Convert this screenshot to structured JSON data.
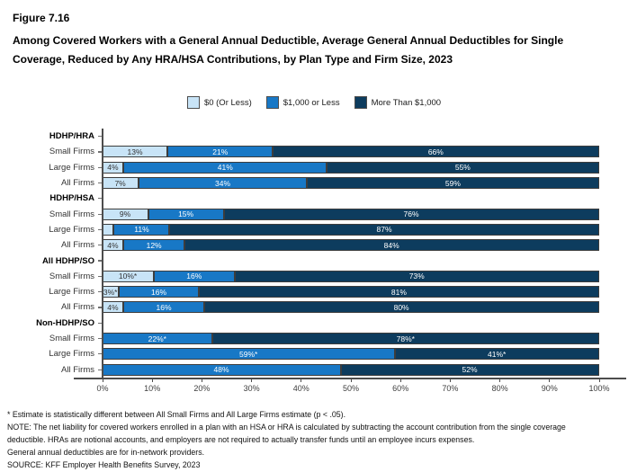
{
  "header": {
    "figure_label": "Figure 7.16",
    "title": "Among Covered Workers with a General Annual Deductible, Average General Annual Deductibles for Single Coverage, Reduced by Any HRA/HSA Contributions, by Plan Type and Firm Size, 2023"
  },
  "colors": {
    "light": "#C8E4F7",
    "medium": "#1878C6",
    "dark": "#0D3C5E",
    "axis": "#4d4d4d",
    "segment_border": "#3d3d3d",
    "text_on_light": "#333333",
    "text_on_dark": "#ffffff"
  },
  "legend": [
    {
      "label": "$0 (Or Less)"
    },
    {
      "label": "$1,000 or Less"
    },
    {
      "label": "More Than $1,000"
    }
  ],
  "chart_data": {
    "type": "bar",
    "orientation": "horizontal",
    "stacked": true,
    "title": "Figure 7.16 — Among Covered Workers with a General Annual Deductible, Average General Annual Deductibles for Single Coverage, Reduced by Any HRA/HSA Contributions, by Plan Type and Firm Size, 2023",
    "xlabel": "",
    "ylabel": "",
    "xlim": [
      0,
      100
    ],
    "grid": false,
    "legend_position": "top",
    "x_ticks": [
      "0%",
      "10%",
      "20%",
      "30%",
      "40%",
      "50%",
      "60%",
      "70%",
      "80%",
      "90%",
      "100%"
    ],
    "series_names": [
      "$0 (Or Less)",
      "$1,000 or Less",
      "More Than $1,000"
    ],
    "groups": [
      {
        "name": "HDHP/HRA",
        "rows": [
          {
            "label": "Small Firms",
            "values": [
              13,
              21,
              66
            ],
            "value_labels": [
              "13%",
              "21%",
              "66%"
            ]
          },
          {
            "label": "Large Firms",
            "values": [
              4,
              41,
              55
            ],
            "value_labels": [
              "4%",
              "41%",
              "55%"
            ]
          },
          {
            "label": "All Firms",
            "values": [
              7,
              34,
              59
            ],
            "value_labels": [
              "7%",
              "34%",
              "59%"
            ]
          }
        ]
      },
      {
        "name": "HDHP/HSA",
        "rows": [
          {
            "label": "Small Firms",
            "values": [
              9,
              15,
              76
            ],
            "value_labels": [
              "9%",
              "15%",
              "76%"
            ]
          },
          {
            "label": "Large Firms",
            "values": [
              2,
              11,
              87
            ],
            "value_labels": [
              "",
              "11%",
              "87%"
            ]
          },
          {
            "label": "All Firms",
            "values": [
              4,
              12,
              84
            ],
            "value_labels": [
              "4%",
              "12%",
              "84%"
            ]
          }
        ]
      },
      {
        "name": "All HDHP/SO",
        "rows": [
          {
            "label": "Small Firms",
            "values": [
              10,
              16,
              73
            ],
            "value_labels": [
              "10%*",
              "16%",
              "73%"
            ]
          },
          {
            "label": "Large Firms",
            "values": [
              3,
              16,
              81
            ],
            "value_labels": [
              "3%*",
              "16%",
              "81%"
            ]
          },
          {
            "label": "All Firms",
            "values": [
              4,
              16,
              80
            ],
            "value_labels": [
              "4%",
              "16%",
              "80%"
            ]
          }
        ]
      },
      {
        "name": "Non-HDHP/SO",
        "rows": [
          {
            "label": "Small Firms",
            "values": [
              0,
              22,
              78
            ],
            "value_labels": [
              "",
              "22%*",
              "78%*"
            ]
          },
          {
            "label": "Large Firms",
            "values": [
              0,
              59,
              41
            ],
            "value_labels": [
              "",
              "59%*",
              "41%*"
            ]
          },
          {
            "label": "All Firms",
            "values": [
              0,
              48,
              52
            ],
            "value_labels": [
              "",
              "48%",
              "52%"
            ]
          }
        ]
      }
    ]
  },
  "footnotes": [
    "* Estimate is statistically different between All Small Firms and All Large Firms estimate (p < .05).",
    "NOTE: The net liability for covered workers enrolled in a plan with an HSA or HRA is calculated by subtracting the account contribution from the single coverage deductible. HRAs are notional accounts, and employers are not required to actually transfer funds until an employee incurs expenses.",
    "General annual deductibles are for in-network providers.",
    "SOURCE: KFF Employer Health Benefits Survey, 2023"
  ]
}
